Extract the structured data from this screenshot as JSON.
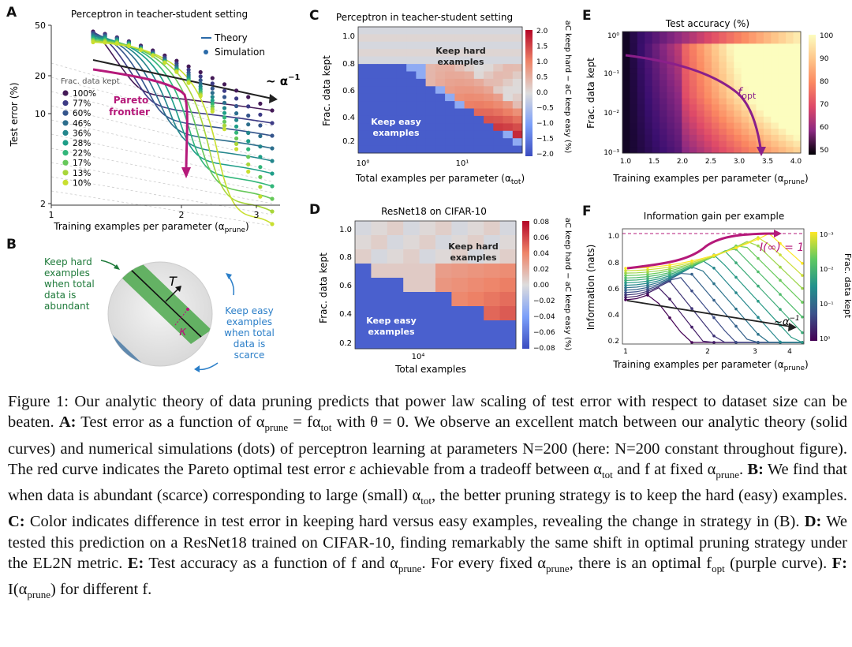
{
  "figure": {
    "panel_letters": [
      "A",
      "B",
      "C",
      "D",
      "E",
      "F"
    ],
    "A": {
      "title": "Perceptron in teacher-student setting",
      "ylabel": "Test error (%)",
      "xlabel": "Training examples per parameter (α",
      "xlabel_sub": "prune",
      "yticks": [
        "50",
        "20",
        "10",
        "2"
      ],
      "xticks": [
        "1",
        "2",
        "3"
      ],
      "legend_theory": "Theory",
      "legend_sim": "Simulation",
      "frac_title": "Frac. data kept",
      "fracs": [
        "100%",
        "77%",
        "60%",
        "46%",
        "36%",
        "28%",
        "22%",
        "17%",
        "13%",
        "10%"
      ],
      "frac_colors": [
        "#441a57",
        "#3d3b85",
        "#35558c",
        "#2d6e8d",
        "#23868c",
        "#1e9e88",
        "#32b67a",
        "#66c85a",
        "#a8d63a",
        "#c9df30"
      ],
      "pareto": "Pareto\nfrontier",
      "pareto_l1": "Pareto",
      "pareto_l2": "frontier",
      "alpha_label": "~ α",
      "alpha_exp": "−1"
    },
    "B": {
      "keep_hard": [
        "Keep hard",
        "examples",
        "when total",
        "data is",
        "abundant"
      ],
      "keep_easy": [
        "Keep easy",
        "examples",
        "when total",
        "data is",
        "scarce"
      ],
      "T": "T",
      "kappa": "κ"
    },
    "C": {
      "title": "Perceptron in teacher-student setting",
      "ylabel": "Frac. data kept",
      "xlabel": "Total examples per parameter (α",
      "xlabel_sub": "tot",
      "yticks": [
        "1.0",
        "0.8",
        "0.6",
        "0.4",
        "0.2"
      ],
      "xticks": [
        "10⁰",
        "10¹"
      ],
      "cbar_ticks": [
        "2.0",
        "1.5",
        "1.0",
        "0.5",
        "0.0",
        "−0.5",
        "−1.0",
        "−1.5",
        "−2.0"
      ],
      "cbar_label": "aC keep hard − aC keep easy (%)",
      "hard_l1": "Keep hard",
      "hard_l2": "examples",
      "easy_l1": "Keep easy",
      "easy_l2": "examples"
    },
    "D": {
      "title": "ResNet18 on CIFAR-10",
      "ylabel": "Frac. data kept",
      "xlabel": "Total examples",
      "yticks": [
        "1.0",
        "0.8",
        "0.6",
        "0.4",
        "0.2"
      ],
      "xtick": "10⁴",
      "cbar_ticks": [
        "0.08",
        "0.06",
        "0.04",
        "0.02",
        "0.00",
        "−0.02",
        "−0.04",
        "−0.06",
        "−0.08"
      ],
      "cbar_label": "aC keep hard − aC keep easy (%)",
      "hard_l1": "Keep hard",
      "hard_l2": "examples",
      "easy_l1": "Keep easy",
      "easy_l2": "examples"
    },
    "E": {
      "title": "Test accuracy (%)",
      "ylabel": "Frac. data kept",
      "xlabel": "Training examples per parameter (α",
      "xlabel_sub": "prune",
      "yticks": [
        "10⁰",
        "10⁻¹",
        "10⁻²",
        "10⁻³"
      ],
      "xticks": [
        "1.0",
        "1.5",
        "2.0",
        "2.5",
        "3.0",
        "3.5",
        "4.0"
      ],
      "cbar_ticks": [
        "100",
        "90",
        "80",
        "70",
        "60",
        "50"
      ],
      "fopt": "f",
      "fopt_sub": "opt"
    },
    "F": {
      "title": "Information gain per example",
      "ylabel": "Information (nats)",
      "xlabel": "Training examples per parameter (α",
      "xlabel_sub": "prune",
      "yticks": [
        "1.0",
        "0.8",
        "0.6",
        "0.4",
        "0.2"
      ],
      "xticks": [
        "1",
        "2",
        "3",
        "4"
      ],
      "cbar_ticks": [
        "10⁻³",
        "10⁻²",
        "10⁻¹",
        "10⁰"
      ],
      "cbar_label": "Frac. data kept",
      "I_inf": "I(∞) = 1",
      "alpha_label": "~α",
      "alpha_exp": "−1"
    }
  },
  "caption": {
    "intro": "Figure 1: Our analytic theory of data pruning predicts that power law scaling of test error with respect to dataset size can be beaten. ",
    "A_label": "A:",
    "A_text": " Test error as a function of α",
    "A_sub1": "prune",
    "A_text2": " = fα",
    "A_sub2": "tot",
    "A_text3": " with θ = 0. We observe an excellent match between our analytic theory (solid curves) and numerical simulations (dots) of perceptron learning at parameters N=200 (here: N=200 constant throughout figure). The red curve indicates the Pareto optimal test error ε achievable from a tradeoff between α",
    "A_sub3": "tot",
    "A_text4": " and f at fixed α",
    "A_sub4": "prune",
    "A_text5": ". ",
    "B_label": "B:",
    "B_text": " We find that when data is abundant (scarce) corresponding to large (small) α",
    "B_sub": "tot",
    "B_text2": ", the better pruning strategy is to keep the hard (easy) examples. ",
    "C_label": "C:",
    "C_text": " Color indicates difference in test error in keeping hard versus easy examples, revealing the change in strategy in (B). ",
    "D_label": "D:",
    "D_text": " We tested this prediction on a ResNet18 trained on CIFAR-10, finding remarkably the same shift in optimal pruning strategy under the EL2N metric. ",
    "E_label": "E:",
    "E_text": " Test accuracy as a function of f and α",
    "E_sub": "prune",
    "E_text2": ". For every fixed α",
    "E_sub2": "prune",
    "E_text3": ", there is an optimal f",
    "E_sub3": "opt",
    "E_text4": " (purple curve). ",
    "F_label": "F:",
    "F_text": " I(α",
    "F_sub": "prune",
    "F_text2": ") for different f."
  },
  "colors": {
    "pareto": "#b5197a",
    "fopt": "#8a1f8a",
    "theory": "#2a6aa8",
    "keep_hard_label": "#1e7a3a",
    "keep_easy_label": "#2a7ec8"
  }
}
